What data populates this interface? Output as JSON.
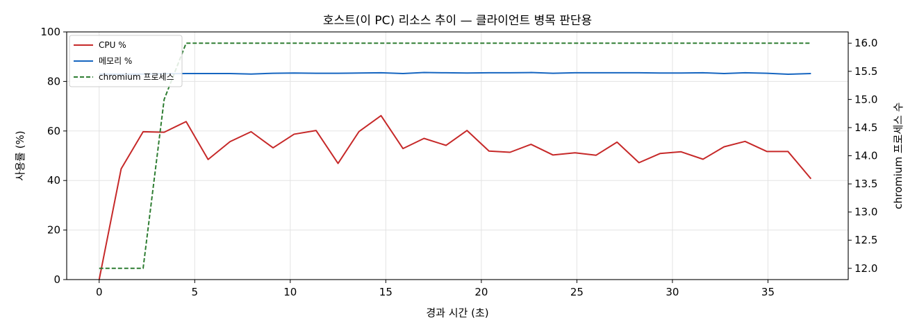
{
  "chart_data": {
    "type": "line",
    "title": "호스트(이 PC) 리소스 추이 — 클라이언트 병목 판단용",
    "xlabel": "경과 시간 (초)",
    "ylabel": "사용률 (%)",
    "y2label": "chromium 프로세스 수",
    "xlim": [
      -1.7,
      39.2
    ],
    "ylim": [
      0,
      100
    ],
    "y2lim": [
      11.8,
      16.2
    ],
    "xticks": [
      0,
      5,
      10,
      15,
      20,
      25,
      30,
      35
    ],
    "yticks": [
      0,
      20,
      40,
      60,
      80,
      100
    ],
    "y2ticks": [
      12.0,
      12.5,
      13.0,
      13.5,
      14.0,
      14.5,
      15.0,
      15.5,
      16.0
    ],
    "y2tick_labels": [
      "12.0",
      "12.5",
      "13.0",
      "13.5",
      "14.0",
      "14.5",
      "15.0",
      "15.5",
      "16.0"
    ],
    "grid": true,
    "legend_position": "top-left",
    "x": [
      0.0,
      1.15,
      2.3,
      3.4,
      4.55,
      5.7,
      6.85,
      7.95,
      9.1,
      10.2,
      11.35,
      12.5,
      13.6,
      14.75,
      15.9,
      17.0,
      18.15,
      19.25,
      20.4,
      21.5,
      22.6,
      23.75,
      24.9,
      26.0,
      27.1,
      28.25,
      29.35,
      30.45,
      31.6,
      32.7,
      33.8,
      34.95,
      36.05,
      37.25
    ],
    "series": [
      {
        "name": "CPU %",
        "axis": "left",
        "color": "#c62828",
        "style": "solid",
        "values": [
          0,
          44.7,
          59.7,
          59.5,
          63.8,
          48.5,
          55.7,
          59.7,
          53.2,
          58.7,
          60.2,
          46.9,
          59.8,
          66.2,
          52.9,
          57.0,
          54.2,
          60.2,
          51.9,
          51.4,
          54.6,
          50.3,
          51.2,
          50.2,
          55.5,
          47.2,
          50.9,
          51.6,
          48.6,
          53.6,
          55.8,
          51.7,
          51.7,
          40.7
        ]
      },
      {
        "name": "메모리 %",
        "axis": "left",
        "color": "#1565c0",
        "style": "solid",
        "values": [
          83.0,
          82.9,
          83.0,
          83.1,
          83.2,
          83.2,
          83.2,
          83.0,
          83.3,
          83.4,
          83.3,
          83.3,
          83.4,
          83.5,
          83.2,
          83.6,
          83.5,
          83.4,
          83.5,
          83.5,
          83.6,
          83.3,
          83.5,
          83.5,
          83.5,
          83.5,
          83.4,
          83.4,
          83.5,
          83.2,
          83.5,
          83.3,
          82.9,
          83.2
        ]
      },
      {
        "name": "chromium 프로세스",
        "axis": "right",
        "color": "#2e7d32",
        "style": "dashed",
        "x": [
          0.0,
          1.15,
          2.3,
          3.4,
          4.55,
          5.7,
          37.25
        ],
        "values": [
          12,
          12,
          12,
          15,
          16,
          16,
          16
        ]
      }
    ]
  }
}
